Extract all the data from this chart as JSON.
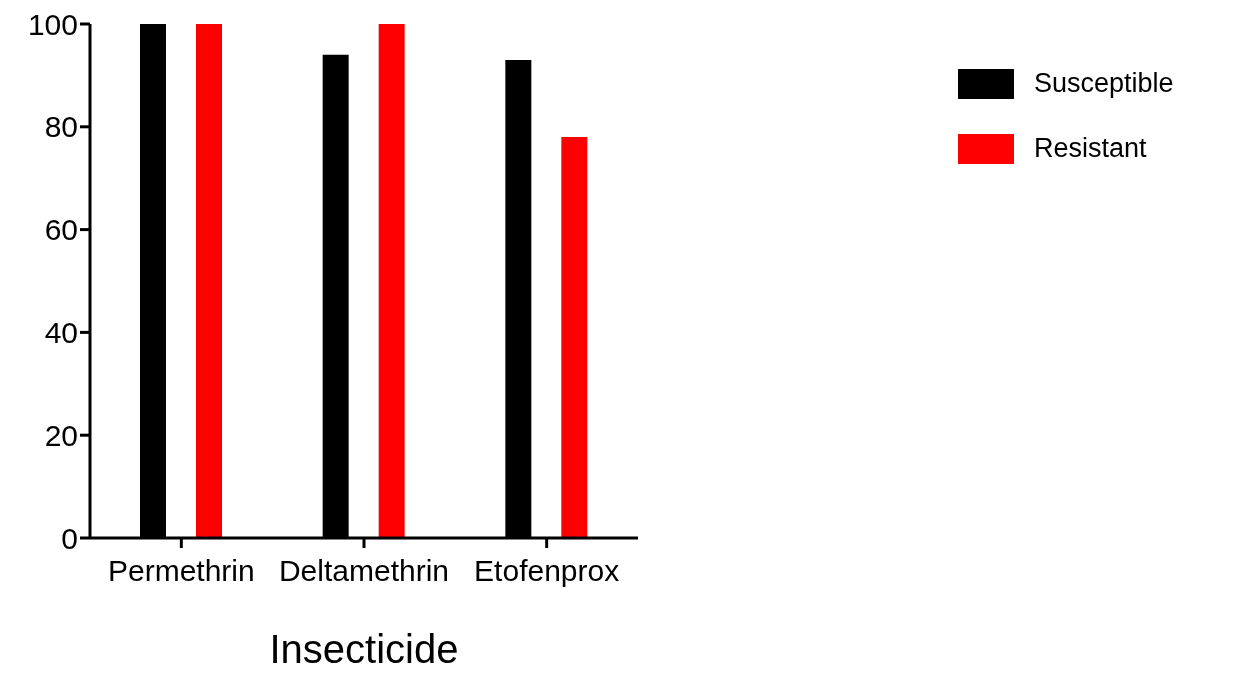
{
  "chart_data": {
    "type": "bar",
    "xlabel": "Insecticide",
    "categories": [
      "Permethrin",
      "Deltamethrin",
      "Etofenprox"
    ],
    "series": [
      {
        "name": "Susceptible",
        "color": "#000000",
        "values": [
          100,
          94,
          93
        ]
      },
      {
        "name": "Resistant",
        "color": "#ff0000",
        "values": [
          100,
          100,
          78
        ]
      }
    ],
    "ylim": [
      0,
      100
    ],
    "yticks": [
      0,
      20,
      40,
      60,
      80,
      100
    ],
    "grid": false,
    "legend": "top right"
  }
}
